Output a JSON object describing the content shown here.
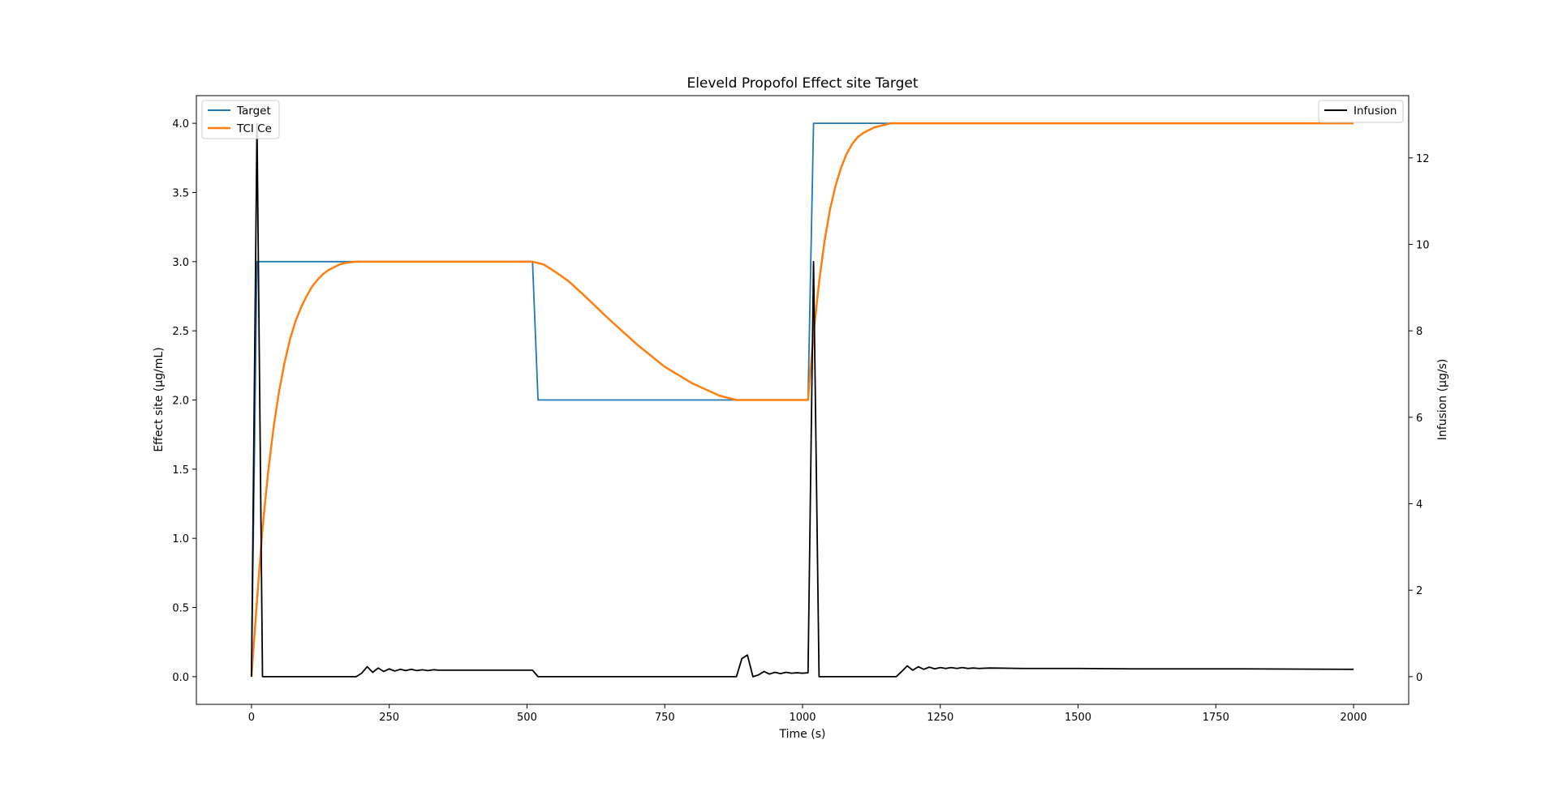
{
  "chart_data": {
    "type": "line",
    "title": "Eleveld Propofol Effect site Target",
    "xlabel": "Time (s)",
    "ylabel_left": "Effect site (µg/mL)",
    "ylabel_right": "Infusion (µg/s)",
    "xlim": [
      -100,
      2100
    ],
    "ylim_left": [
      -0.2,
      4.2
    ],
    "ylim_right": [
      -0.64,
      13.44
    ],
    "x_ticks": [
      0,
      250,
      500,
      750,
      1000,
      1250,
      1500,
      1750,
      2000
    ],
    "y_ticks_left": [
      0.0,
      0.5,
      1.0,
      1.5,
      2.0,
      2.5,
      3.0,
      3.5,
      4.0
    ],
    "y_ticks_right": [
      0,
      2,
      4,
      6,
      8,
      10,
      12
    ],
    "grid": false,
    "legend_left": "top-left",
    "legend_right": "top-right",
    "series": [
      {
        "name": "Target",
        "axis": "left",
        "color": "#1f77b4",
        "x": [
          0,
          10,
          510,
          520,
          1010,
          1020,
          2000
        ],
        "y": [
          0.0,
          3.0,
          3.0,
          2.0,
          2.0,
          4.0,
          4.0
        ]
      },
      {
        "name": "TCI Ce",
        "axis": "left",
        "color": "#ff7f0e",
        "x": [
          0,
          10,
          20,
          30,
          40,
          50,
          60,
          70,
          80,
          90,
          100,
          110,
          120,
          130,
          140,
          150,
          160,
          170,
          180,
          190,
          200,
          510,
          530,
          550,
          575,
          600,
          650,
          700,
          750,
          800,
          850,
          880,
          1010,
          1020,
          1030,
          1040,
          1050,
          1060,
          1070,
          1080,
          1090,
          1100,
          1110,
          1120,
          1130,
          1140,
          1150,
          1160,
          1170,
          2000
        ],
        "y": [
          0.0,
          0.55,
          1.07,
          1.47,
          1.8,
          2.06,
          2.27,
          2.44,
          2.57,
          2.67,
          2.75,
          2.82,
          2.87,
          2.91,
          2.94,
          2.96,
          2.98,
          2.99,
          2.995,
          3.0,
          3.0,
          3.0,
          2.98,
          2.93,
          2.86,
          2.77,
          2.58,
          2.4,
          2.24,
          2.12,
          2.03,
          2.0,
          2.0,
          2.48,
          2.85,
          3.15,
          3.38,
          3.55,
          3.68,
          3.78,
          3.85,
          3.9,
          3.93,
          3.95,
          3.97,
          3.98,
          3.99,
          4.0,
          4.0,
          4.0
        ]
      },
      {
        "name": "Infusion",
        "axis": "right",
        "color": "#000000",
        "x": [
          0,
          10,
          20,
          30,
          190,
          200,
          210,
          220,
          230,
          240,
          250,
          260,
          270,
          280,
          290,
          300,
          310,
          320,
          330,
          340,
          350,
          400,
          450,
          500,
          510,
          520,
          530,
          880,
          890,
          900,
          910,
          920,
          930,
          940,
          950,
          960,
          970,
          980,
          990,
          1000,
          1010,
          1020,
          1030,
          1040,
          1170,
          1180,
          1190,
          1200,
          1210,
          1220,
          1230,
          1240,
          1250,
          1260,
          1270,
          1280,
          1290,
          1300,
          1310,
          1320,
          1340,
          1400,
          1500,
          1600,
          1800,
          2000
        ],
        "y": [
          0.0,
          12.8,
          0.0,
          0.0,
          0.0,
          0.08,
          0.23,
          0.1,
          0.2,
          0.12,
          0.18,
          0.13,
          0.17,
          0.14,
          0.17,
          0.14,
          0.16,
          0.14,
          0.16,
          0.15,
          0.15,
          0.15,
          0.15,
          0.15,
          0.15,
          0.0,
          0.0,
          0.0,
          0.42,
          0.5,
          0.0,
          0.04,
          0.12,
          0.06,
          0.1,
          0.07,
          0.1,
          0.08,
          0.09,
          0.08,
          0.09,
          9.6,
          0.0,
          0.0,
          0.0,
          0.12,
          0.25,
          0.15,
          0.23,
          0.17,
          0.22,
          0.18,
          0.21,
          0.19,
          0.21,
          0.19,
          0.21,
          0.19,
          0.2,
          0.19,
          0.2,
          0.19,
          0.19,
          0.18,
          0.18,
          0.17
        ]
      }
    ]
  }
}
